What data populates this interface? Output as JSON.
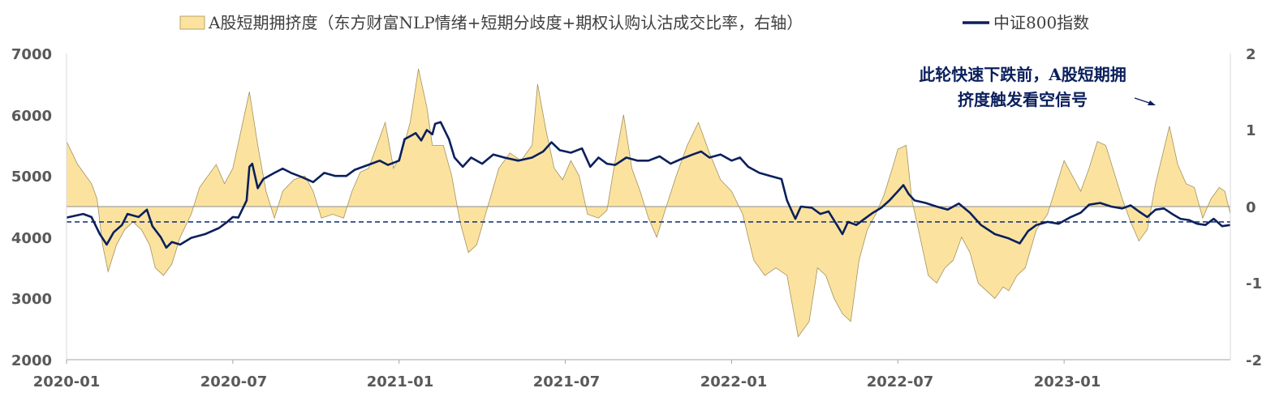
{
  "chart_data": {
    "type": "line",
    "legend": [
      {
        "label": "A股短期拥挤度（东方财富NLP情绪+短期分歧度+期权认购认沽成交比率，右轴）",
        "kind": "area",
        "color": "#fbe39f"
      },
      {
        "label": "中证800指数",
        "kind": "line",
        "color": "#0a1f5c"
      }
    ],
    "x_ticks": [
      "2020-01",
      "2020-07",
      "2021-01",
      "2021-07",
      "2022-01",
      "2022-07",
      "2023-01"
    ],
    "x_tick_positions": [
      0,
      6,
      12,
      18,
      24,
      30,
      36
    ],
    "xlim": [
      0,
      42
    ],
    "y_left": {
      "ticks": [
        "7000",
        "6000",
        "5000",
        "4000",
        "3000",
        "2000"
      ],
      "ylim": [
        2000,
        7000
      ]
    },
    "y_right": {
      "ticks": [
        "2",
        "1",
        "0",
        "-1",
        "-2"
      ],
      "ylim": [
        -2,
        2
      ]
    },
    "reference_line": {
      "axis": "left",
      "value": 4250,
      "style": "dashed"
    },
    "annotation": {
      "lines": [
        "此轮快速下跌前，A股短期拥",
        "挤度触发看空信号"
      ],
      "arrow": true
    },
    "series": [
      {
        "name": "中证800指数",
        "axis": "left",
        "points": [
          [
            0,
            4320
          ],
          [
            0.6,
            4380
          ],
          [
            0.9,
            4330
          ],
          [
            1.2,
            4050
          ],
          [
            1.45,
            3880
          ],
          [
            1.7,
            4080
          ],
          [
            2.0,
            4200
          ],
          [
            2.2,
            4380
          ],
          [
            2.6,
            4330
          ],
          [
            2.9,
            4450
          ],
          [
            3.1,
            4180
          ],
          [
            3.4,
            4000
          ],
          [
            3.6,
            3830
          ],
          [
            3.8,
            3920
          ],
          [
            4.1,
            3880
          ],
          [
            4.5,
            3990
          ],
          [
            5.0,
            4050
          ],
          [
            5.5,
            4150
          ],
          [
            5.8,
            4250
          ],
          [
            6.0,
            4330
          ],
          [
            6.2,
            4320
          ],
          [
            6.5,
            4600
          ],
          [
            6.6,
            5150
          ],
          [
            6.7,
            5200
          ],
          [
            6.9,
            4800
          ],
          [
            7.1,
            4950
          ],
          [
            7.5,
            5050
          ],
          [
            7.8,
            5120
          ],
          [
            8.1,
            5050
          ],
          [
            8.5,
            4980
          ],
          [
            8.9,
            4900
          ],
          [
            9.3,
            5050
          ],
          [
            9.7,
            5000
          ],
          [
            10.1,
            5000
          ],
          [
            10.4,
            5100
          ],
          [
            10.7,
            5150
          ],
          [
            11.0,
            5200
          ],
          [
            11.3,
            5250
          ],
          [
            11.6,
            5180
          ],
          [
            12.0,
            5250
          ],
          [
            12.2,
            5600
          ],
          [
            12.4,
            5650
          ],
          [
            12.6,
            5700
          ],
          [
            12.8,
            5580
          ],
          [
            13.0,
            5750
          ],
          [
            13.2,
            5680
          ],
          [
            13.3,
            5850
          ],
          [
            13.5,
            5880
          ],
          [
            13.8,
            5600
          ],
          [
            14.0,
            5300
          ],
          [
            14.3,
            5150
          ],
          [
            14.6,
            5300
          ],
          [
            15.0,
            5200
          ],
          [
            15.4,
            5350
          ],
          [
            15.8,
            5300
          ],
          [
            16.3,
            5250
          ],
          [
            16.8,
            5300
          ],
          [
            17.2,
            5400
          ],
          [
            17.5,
            5550
          ],
          [
            17.8,
            5420
          ],
          [
            18.2,
            5380
          ],
          [
            18.6,
            5450
          ],
          [
            18.9,
            5150
          ],
          [
            19.2,
            5300
          ],
          [
            19.5,
            5200
          ],
          [
            19.8,
            5180
          ],
          [
            20.2,
            5300
          ],
          [
            20.6,
            5250
          ],
          [
            21.0,
            5250
          ],
          [
            21.4,
            5320
          ],
          [
            21.8,
            5200
          ],
          [
            22.2,
            5280
          ],
          [
            22.6,
            5350
          ],
          [
            22.9,
            5400
          ],
          [
            23.2,
            5300
          ],
          [
            23.6,
            5350
          ],
          [
            24.0,
            5250
          ],
          [
            24.3,
            5300
          ],
          [
            24.6,
            5150
          ],
          [
            25.0,
            5050
          ],
          [
            25.4,
            5000
          ],
          [
            25.8,
            4950
          ],
          [
            26.0,
            4600
          ],
          [
            26.2,
            4400
          ],
          [
            26.3,
            4300
          ],
          [
            26.5,
            4500
          ],
          [
            26.9,
            4480
          ],
          [
            27.2,
            4380
          ],
          [
            27.5,
            4420
          ],
          [
            27.8,
            4200
          ],
          [
            28.0,
            4050
          ],
          [
            28.2,
            4250
          ],
          [
            28.5,
            4200
          ],
          [
            28.8,
            4300
          ],
          [
            29.1,
            4400
          ],
          [
            29.4,
            4480
          ],
          [
            29.7,
            4600
          ],
          [
            30.0,
            4750
          ],
          [
            30.2,
            4850
          ],
          [
            30.4,
            4700
          ],
          [
            30.6,
            4600
          ],
          [
            31.0,
            4560
          ],
          [
            31.4,
            4500
          ],
          [
            31.8,
            4450
          ],
          [
            32.2,
            4550
          ],
          [
            32.6,
            4400
          ],
          [
            33.0,
            4200
          ],
          [
            33.5,
            4050
          ],
          [
            34.0,
            3980
          ],
          [
            34.4,
            3900
          ],
          [
            34.7,
            4100
          ],
          [
            35.0,
            4200
          ],
          [
            35.4,
            4250
          ],
          [
            35.8,
            4220
          ],
          [
            36.2,
            4320
          ],
          [
            36.6,
            4400
          ],
          [
            36.9,
            4530
          ],
          [
            37.3,
            4560
          ],
          [
            37.7,
            4500
          ],
          [
            38.1,
            4470
          ],
          [
            38.4,
            4520
          ],
          [
            38.7,
            4420
          ],
          [
            39.0,
            4330
          ],
          [
            39.3,
            4450
          ],
          [
            39.6,
            4470
          ],
          [
            39.9,
            4380
          ],
          [
            40.2,
            4300
          ],
          [
            40.5,
            4280
          ],
          [
            40.8,
            4220
          ],
          [
            41.1,
            4200
          ],
          [
            41.4,
            4300
          ],
          [
            41.7,
            4180
          ],
          [
            42.0,
            4200
          ]
        ]
      },
      {
        "name": "A股短期拥挤度（东方财富NLP情绪+短期分歧度+期权认购认沽成交比率，右轴）",
        "axis": "right",
        "points": [
          [
            0,
            0.85
          ],
          [
            0.4,
            0.55
          ],
          [
            0.9,
            0.3
          ],
          [
            1.1,
            0.1
          ],
          [
            1.3,
            -0.5
          ],
          [
            1.5,
            -0.85
          ],
          [
            1.8,
            -0.5
          ],
          [
            2.1,
            -0.3
          ],
          [
            2.4,
            -0.2
          ],
          [
            2.7,
            -0.3
          ],
          [
            3.0,
            -0.5
          ],
          [
            3.2,
            -0.8
          ],
          [
            3.5,
            -0.9
          ],
          [
            3.8,
            -0.75
          ],
          [
            4.1,
            -0.4
          ],
          [
            4.5,
            -0.1
          ],
          [
            4.8,
            0.25
          ],
          [
            5.1,
            0.4
          ],
          [
            5.4,
            0.55
          ],
          [
            5.7,
            0.3
          ],
          [
            6.0,
            0.5
          ],
          [
            6.3,
            1.0
          ],
          [
            6.6,
            1.5
          ],
          [
            6.9,
            0.8
          ],
          [
            7.2,
            0.2
          ],
          [
            7.5,
            -0.15
          ],
          [
            7.8,
            0.2
          ],
          [
            8.2,
            0.35
          ],
          [
            8.6,
            0.4
          ],
          [
            8.9,
            0.2
          ],
          [
            9.2,
            -0.15
          ],
          [
            9.6,
            -0.1
          ],
          [
            10.0,
            -0.15
          ],
          [
            10.3,
            0.2
          ],
          [
            10.6,
            0.45
          ],
          [
            10.9,
            0.5
          ],
          [
            11.2,
            0.8
          ],
          [
            11.5,
            1.1
          ],
          [
            11.8,
            0.5
          ],
          [
            12.1,
            0.7
          ],
          [
            12.4,
            1.1
          ],
          [
            12.7,
            1.8
          ],
          [
            13.0,
            1.3
          ],
          [
            13.2,
            0.8
          ],
          [
            13.6,
            0.8
          ],
          [
            13.9,
            0.4
          ],
          [
            14.2,
            -0.2
          ],
          [
            14.5,
            -0.6
          ],
          [
            14.8,
            -0.5
          ],
          [
            15.2,
            0.0
          ],
          [
            15.6,
            0.5
          ],
          [
            16.0,
            0.7
          ],
          [
            16.4,
            0.6
          ],
          [
            16.8,
            0.8
          ],
          [
            17.0,
            1.6
          ],
          [
            17.3,
            1.0
          ],
          [
            17.6,
            0.5
          ],
          [
            17.9,
            0.35
          ],
          [
            18.2,
            0.6
          ],
          [
            18.5,
            0.4
          ],
          [
            18.8,
            -0.1
          ],
          [
            19.2,
            -0.15
          ],
          [
            19.5,
            -0.05
          ],
          [
            19.8,
            0.6
          ],
          [
            20.1,
            1.2
          ],
          [
            20.4,
            0.5
          ],
          [
            20.7,
            0.2
          ],
          [
            21.0,
            -0.15
          ],
          [
            21.3,
            -0.4
          ],
          [
            21.6,
            -0.05
          ],
          [
            22.0,
            0.4
          ],
          [
            22.4,
            0.8
          ],
          [
            22.8,
            1.1
          ],
          [
            23.2,
            0.7
          ],
          [
            23.6,
            0.35
          ],
          [
            24.0,
            0.2
          ],
          [
            24.4,
            -0.1
          ],
          [
            24.8,
            -0.7
          ],
          [
            25.2,
            -0.9
          ],
          [
            25.6,
            -0.8
          ],
          [
            26.0,
            -0.9
          ],
          [
            26.4,
            -1.7
          ],
          [
            26.8,
            -1.5
          ],
          [
            27.1,
            -0.8
          ],
          [
            27.4,
            -0.9
          ],
          [
            27.7,
            -1.2
          ],
          [
            28.0,
            -1.4
          ],
          [
            28.3,
            -1.5
          ],
          [
            28.6,
            -0.7
          ],
          [
            28.9,
            -0.3
          ],
          [
            29.2,
            -0.1
          ],
          [
            29.5,
            0.15
          ],
          [
            29.8,
            0.5
          ],
          [
            30.0,
            0.75
          ],
          [
            30.3,
            0.8
          ],
          [
            30.5,
            0.1
          ],
          [
            30.8,
            -0.4
          ],
          [
            31.1,
            -0.9
          ],
          [
            31.4,
            -1.0
          ],
          [
            31.7,
            -0.8
          ],
          [
            32.0,
            -0.7
          ],
          [
            32.3,
            -0.4
          ],
          [
            32.6,
            -0.6
          ],
          [
            32.9,
            -1.0
          ],
          [
            33.2,
            -1.1
          ],
          [
            33.5,
            -1.2
          ],
          [
            33.8,
            -1.05
          ],
          [
            34.0,
            -1.1
          ],
          [
            34.3,
            -0.9
          ],
          [
            34.6,
            -0.8
          ],
          [
            35.0,
            -0.3
          ],
          [
            35.4,
            -0.1
          ],
          [
            35.7,
            0.25
          ],
          [
            36.0,
            0.6
          ],
          [
            36.3,
            0.4
          ],
          [
            36.6,
            0.2
          ],
          [
            36.9,
            0.5
          ],
          [
            37.2,
            0.85
          ],
          [
            37.5,
            0.8
          ],
          [
            37.8,
            0.45
          ],
          [
            38.1,
            0.1
          ],
          [
            38.4,
            -0.2
          ],
          [
            38.7,
            -0.45
          ],
          [
            39.0,
            -0.3
          ],
          [
            39.3,
            0.3
          ],
          [
            39.6,
            0.75
          ],
          [
            39.8,
            1.05
          ],
          [
            40.1,
            0.55
          ],
          [
            40.4,
            0.3
          ],
          [
            40.7,
            0.25
          ],
          [
            41.0,
            -0.15
          ],
          [
            41.3,
            0.1
          ],
          [
            41.6,
            0.25
          ],
          [
            41.8,
            0.2
          ],
          [
            42.0,
            -0.1
          ]
        ]
      }
    ]
  }
}
